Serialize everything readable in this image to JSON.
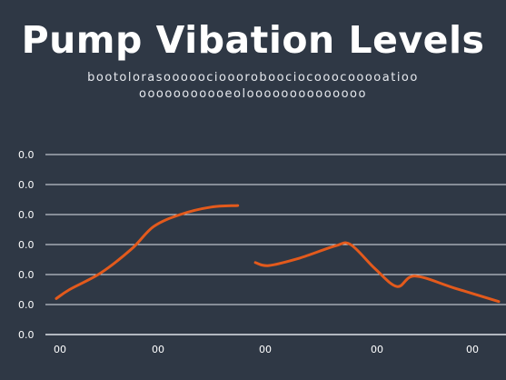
{
  "chart_data": {
    "type": "line",
    "title": "Pump Vibation Levels",
    "subtitle_lines": [
      "bootolorasooooocioooroboociocooocooooatioo",
      "ooooooooooeoloooooooooooooo"
    ],
    "xlabel": "",
    "ylabel": "",
    "y_tick_labels": [
      "0.0",
      "0.0",
      "0.0",
      "0.0",
      "0.0",
      "0.0",
      "0.0"
    ],
    "x_tick_labels": [
      "00",
      "00",
      "00",
      "00",
      "00"
    ],
    "x_range": [
      0,
      10
    ],
    "ylim": [
      0,
      6
    ],
    "grid": true,
    "legend": "none",
    "series": [
      {
        "segments": [
          {
            "x": [
              0.0,
              0.3,
              1.0,
              1.7,
              2.2,
              2.8,
              3.5,
              4.1
            ],
            "y": [
              1.2,
              1.5,
              2.05,
              2.85,
              3.6,
              4.0,
              4.25,
              4.3
            ]
          },
          {
            "x": [
              4.5,
              4.8,
              5.5,
              6.3,
              6.65,
              7.2,
              7.7,
              8.1,
              9.0,
              10.0
            ],
            "y": [
              2.4,
              2.3,
              2.55,
              2.95,
              3.0,
              2.2,
              1.6,
              1.95,
              1.55,
              1.1
            ]
          }
        ]
      }
    ],
    "colors": {
      "background": "#2f3845",
      "line": "#e35a1c",
      "grid": "#dfe3ea",
      "text": "#ffffff"
    }
  }
}
